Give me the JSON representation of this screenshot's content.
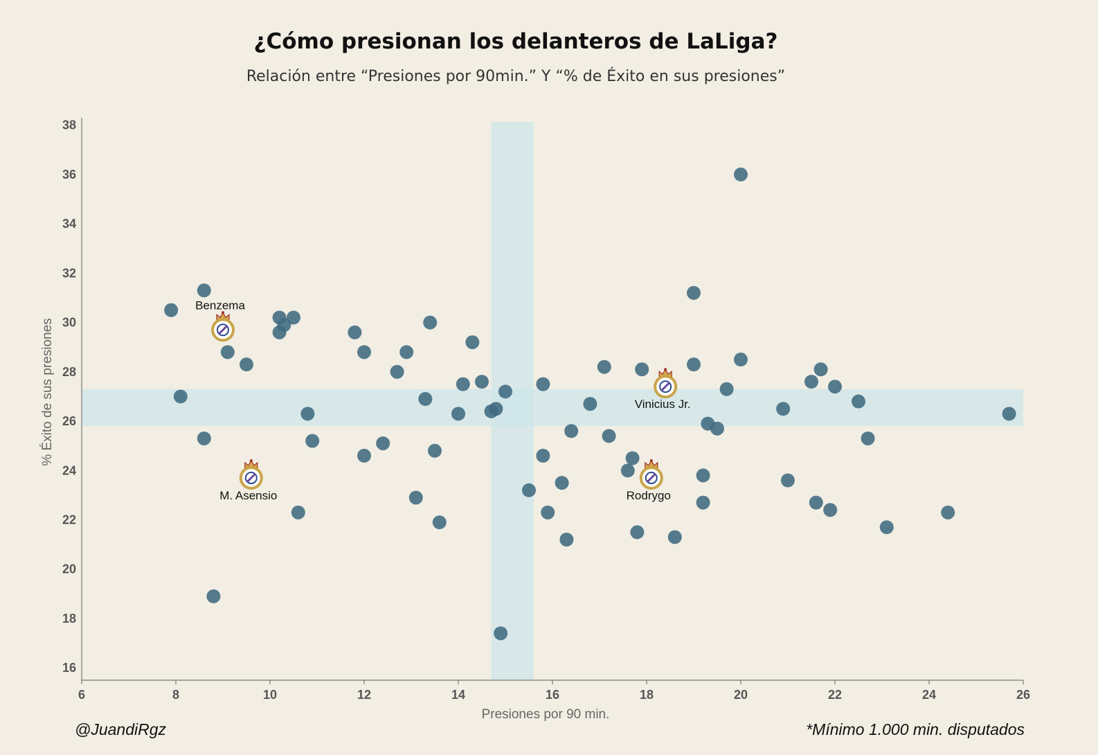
{
  "title": "¿Cómo presionan los delanteros de LaLiga?",
  "subtitle": "Relación entre “Presiones por 90min.” Y “% de Éxito en sus presiones”",
  "footer_left": "@JuandiRgz",
  "footer_right": "*Mínimo 1.000 min. disputados",
  "colors": {
    "background": "#f2eee3",
    "points": "#3f6a80",
    "bands": "#cfe6ea",
    "badge_gold": "#c9a54a"
  },
  "chart_data": {
    "type": "scatter",
    "xlabel": "Presiones por 90 min.",
    "ylabel": "% Éxito de sus presiones",
    "xlim": [
      6,
      26
    ],
    "ylim": [
      15.5,
      38.3
    ],
    "xticks": [
      6,
      8,
      10,
      12,
      14,
      16,
      18,
      20,
      22,
      24,
      26
    ],
    "yticks": [
      16,
      18,
      20,
      22,
      24,
      26,
      28,
      30,
      32,
      34,
      36,
      38
    ],
    "grid": false,
    "average_bands": {
      "x_range": [
        14.7,
        15.6
      ],
      "y_range": [
        25.8,
        27.3
      ]
    },
    "points": [
      {
        "x": 7.9,
        "y": 30.5
      },
      {
        "x": 8.1,
        "y": 27.0
      },
      {
        "x": 8.6,
        "y": 31.3
      },
      {
        "x": 8.6,
        "y": 25.3
      },
      {
        "x": 8.8,
        "y": 18.9
      },
      {
        "x": 9.1,
        "y": 28.8
      },
      {
        "x": 9.5,
        "y": 28.3
      },
      {
        "x": 10.2,
        "y": 30.2
      },
      {
        "x": 10.3,
        "y": 29.9
      },
      {
        "x": 10.2,
        "y": 29.6
      },
      {
        "x": 10.5,
        "y": 30.2
      },
      {
        "x": 10.6,
        "y": 22.3
      },
      {
        "x": 10.8,
        "y": 26.3
      },
      {
        "x": 10.9,
        "y": 25.2
      },
      {
        "x": 11.8,
        "y": 29.6
      },
      {
        "x": 12.0,
        "y": 28.8
      },
      {
        "x": 12.0,
        "y": 24.6
      },
      {
        "x": 12.4,
        "y": 25.1
      },
      {
        "x": 12.7,
        "y": 28.0
      },
      {
        "x": 12.9,
        "y": 28.8
      },
      {
        "x": 13.1,
        "y": 22.9
      },
      {
        "x": 13.3,
        "y": 26.9
      },
      {
        "x": 13.4,
        "y": 30.0
      },
      {
        "x": 13.5,
        "y": 24.8
      },
      {
        "x": 13.6,
        "y": 21.9
      },
      {
        "x": 14.0,
        "y": 26.3
      },
      {
        "x": 14.1,
        "y": 27.5
      },
      {
        "x": 14.3,
        "y": 29.2
      },
      {
        "x": 14.5,
        "y": 27.6
      },
      {
        "x": 14.7,
        "y": 26.4
      },
      {
        "x": 14.8,
        "y": 26.5
      },
      {
        "x": 14.9,
        "y": 17.4
      },
      {
        "x": 15.0,
        "y": 27.2
      },
      {
        "x": 15.5,
        "y": 23.2
      },
      {
        "x": 15.8,
        "y": 27.5
      },
      {
        "x": 15.8,
        "y": 24.6
      },
      {
        "x": 15.9,
        "y": 22.3
      },
      {
        "x": 16.2,
        "y": 23.5
      },
      {
        "x": 16.3,
        "y": 21.2
      },
      {
        "x": 16.4,
        "y": 25.6
      },
      {
        "x": 16.8,
        "y": 26.7
      },
      {
        "x": 17.1,
        "y": 28.2
      },
      {
        "x": 17.2,
        "y": 25.4
      },
      {
        "x": 17.6,
        "y": 24.0
      },
      {
        "x": 17.7,
        "y": 24.5
      },
      {
        "x": 17.8,
        "y": 21.5
      },
      {
        "x": 17.9,
        "y": 28.1
      },
      {
        "x": 18.6,
        "y": 21.3
      },
      {
        "x": 19.0,
        "y": 31.2
      },
      {
        "x": 19.0,
        "y": 28.3
      },
      {
        "x": 19.2,
        "y": 23.8
      },
      {
        "x": 19.2,
        "y": 22.7
      },
      {
        "x": 19.3,
        "y": 25.9
      },
      {
        "x": 19.5,
        "y": 25.7
      },
      {
        "x": 19.7,
        "y": 27.3
      },
      {
        "x": 20.0,
        "y": 36.0
      },
      {
        "x": 20.0,
        "y": 28.5
      },
      {
        "x": 20.9,
        "y": 26.5
      },
      {
        "x": 21.0,
        "y": 23.6
      },
      {
        "x": 21.5,
        "y": 27.6
      },
      {
        "x": 21.6,
        "y": 22.7
      },
      {
        "x": 21.7,
        "y": 28.1
      },
      {
        "x": 21.9,
        "y": 22.4
      },
      {
        "x": 22.0,
        "y": 27.4
      },
      {
        "x": 22.5,
        "y": 26.8
      },
      {
        "x": 22.7,
        "y": 25.3
      },
      {
        "x": 23.1,
        "y": 21.7
      },
      {
        "x": 24.4,
        "y": 22.3
      },
      {
        "x": 25.7,
        "y": 26.3
      }
    ],
    "highlighted": [
      {
        "name": "Benzema",
        "x": 9.0,
        "y": 29.7,
        "label_pos": "above"
      },
      {
        "name": "M. Asensio",
        "x": 9.6,
        "y": 23.7,
        "label_pos": "below"
      },
      {
        "name": "Vinicius Jr.",
        "x": 18.4,
        "y": 27.4,
        "label_pos": "below"
      },
      {
        "name": "Rodrygo",
        "x": 18.1,
        "y": 23.7,
        "label_pos": "below"
      }
    ]
  }
}
